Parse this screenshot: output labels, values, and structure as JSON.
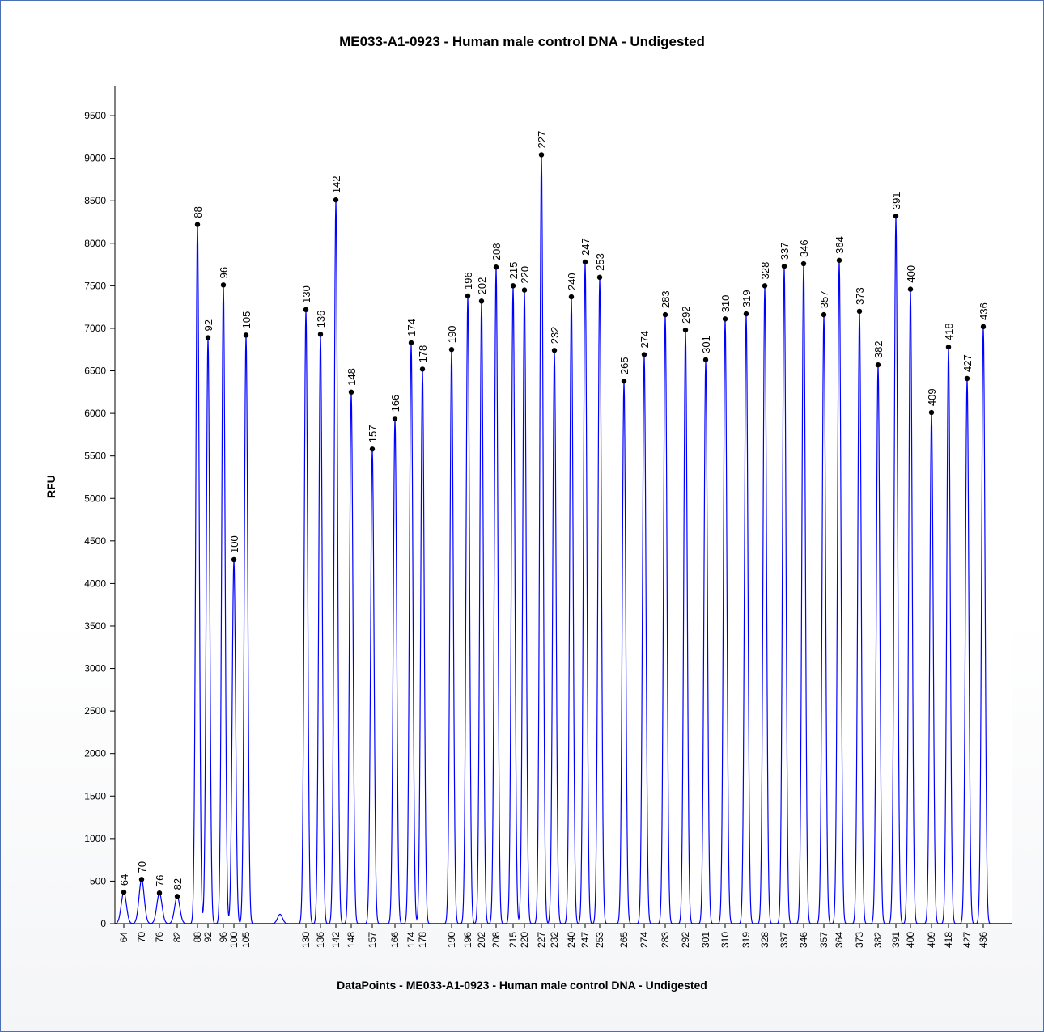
{
  "chart_data": {
    "type": "line",
    "title": "ME033-A1-0923 - Human male control DNA - Undigested",
    "xlabel": "DataPoints - ME033-A1-0923 - Human male control DNA - Undigested",
    "ylabel": "RFU",
    "ylim": [
      0,
      9800
    ],
    "yticks": [
      0,
      500,
      1000,
      1500,
      2000,
      2500,
      3000,
      3500,
      4000,
      4500,
      5000,
      5500,
      6000,
      6500,
      7000,
      7500,
      8000,
      8500,
      9000,
      9500
    ],
    "grid": false,
    "line_color": "#0000ff",
    "baseline_color": "#ff0000",
    "marker_color": "#000000",
    "series": [
      {
        "peaks": [
          {
            "label": "64",
            "rfu": 370
          },
          {
            "label": "70",
            "rfu": 520
          },
          {
            "label": "76",
            "rfu": 360
          },
          {
            "label": "82",
            "rfu": 320
          },
          {
            "label": "88",
            "rfu": 8220
          },
          {
            "label": "92",
            "rfu": 6890
          },
          {
            "label": "96",
            "rfu": 7510
          },
          {
            "label": "100",
            "rfu": 4280
          },
          {
            "label": "105",
            "rfu": 6920
          },
          {
            "label": "130",
            "rfu": 7220
          },
          {
            "label": "136",
            "rfu": 6930
          },
          {
            "label": "142",
            "rfu": 8510
          },
          {
            "label": "148",
            "rfu": 6250
          },
          {
            "label": "157",
            "rfu": 5580
          },
          {
            "label": "166",
            "rfu": 5940
          },
          {
            "label": "174",
            "rfu": 6830
          },
          {
            "label": "178",
            "rfu": 6520
          },
          {
            "label": "190",
            "rfu": 6750
          },
          {
            "label": "196",
            "rfu": 7380
          },
          {
            "label": "202",
            "rfu": 7320
          },
          {
            "label": "208",
            "rfu": 7720
          },
          {
            "label": "215",
            "rfu": 7500
          },
          {
            "label": "220",
            "rfu": 7450
          },
          {
            "label": "227",
            "rfu": 9040
          },
          {
            "label": "232",
            "rfu": 6740
          },
          {
            "label": "240",
            "rfu": 7370
          },
          {
            "label": "247",
            "rfu": 7780
          },
          {
            "label": "253",
            "rfu": 7600
          },
          {
            "label": "265",
            "rfu": 6380
          },
          {
            "label": "274",
            "rfu": 6690
          },
          {
            "label": "283",
            "rfu": 7160
          },
          {
            "label": "292",
            "rfu": 6980
          },
          {
            "label": "301",
            "rfu": 6630
          },
          {
            "label": "310",
            "rfu": 7110
          },
          {
            "label": "319",
            "rfu": 7170
          },
          {
            "label": "328",
            "rfu": 7500
          },
          {
            "label": "337",
            "rfu": 7730
          },
          {
            "label": "346",
            "rfu": 7760
          },
          {
            "label": "357",
            "rfu": 7160
          },
          {
            "label": "364",
            "rfu": 7800
          },
          {
            "label": "373",
            "rfu": 7200
          },
          {
            "label": "382",
            "rfu": 6570
          },
          {
            "label": "391",
            "rfu": 8320
          },
          {
            "label": "400",
            "rfu": 7460
          },
          {
            "label": "409",
            "rfu": 6010
          },
          {
            "label": "418",
            "rfu": 6780
          },
          {
            "label": "427",
            "rfu": 6410
          },
          {
            "label": "436",
            "rfu": 7020
          }
        ],
        "minor_peaks": [
          {
            "rfu": 110
          }
        ]
      }
    ]
  }
}
